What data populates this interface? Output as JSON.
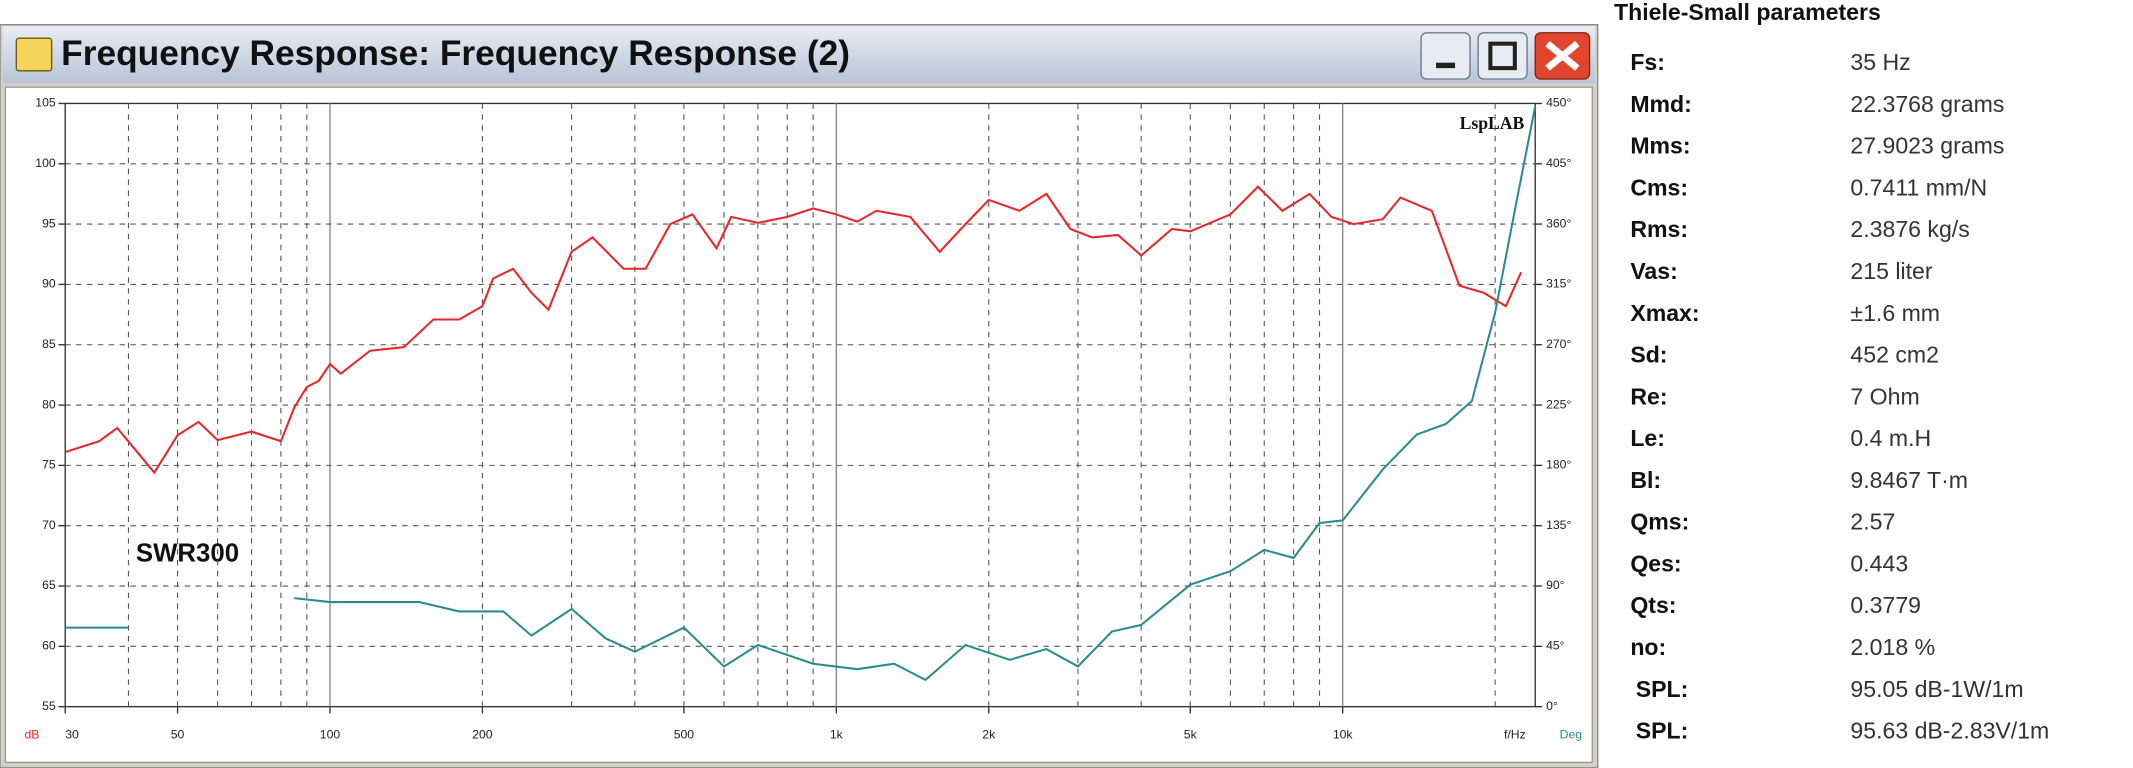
{
  "window": {
    "title": "Frequency Response: Frequency Response (2)"
  },
  "chart_data": {
    "type": "line",
    "annotations": [
      "LspLAB",
      "SWR300"
    ],
    "xlabel": "f/Hz",
    "ylabel": "dB",
    "y2label": "Deg",
    "xscale": "log",
    "grid": true,
    "xlim": [
      30,
      24000
    ],
    "xticks": [
      30,
      50,
      100,
      200,
      500,
      {
        "value": 1000,
        "label": "1k"
      },
      {
        "value": 2000,
        "label": "2k"
      },
      {
        "value": 5000,
        "label": "5k"
      },
      {
        "value": 10000,
        "label": "10k"
      }
    ],
    "xgrid": [
      40,
      50,
      60,
      70,
      80,
      90,
      100,
      200,
      300,
      400,
      500,
      600,
      700,
      800,
      900,
      1000,
      2000,
      3000,
      4000,
      5000,
      6000,
      7000,
      8000,
      9000,
      10000,
      20000
    ],
    "ylim": [
      55,
      105
    ],
    "yticks": [
      55,
      60,
      65,
      70,
      75,
      80,
      85,
      90,
      95,
      100,
      105
    ],
    "y2lim": [
      0,
      450
    ],
    "y2ticks": [
      {
        "value": 0,
        "label": "0°"
      },
      {
        "value": 45,
        "label": "45°"
      },
      {
        "value": 90,
        "label": "90°"
      },
      {
        "value": 135,
        "label": "135°"
      },
      {
        "value": 180,
        "label": "180°"
      },
      {
        "value": 225,
        "label": "225°"
      },
      {
        "value": 270,
        "label": "270°"
      },
      {
        "value": 315,
        "label": "315°"
      },
      {
        "value": 360,
        "label": "360°"
      },
      {
        "value": 405,
        "label": "405°"
      },
      {
        "value": 450,
        "label": "450°"
      }
    ],
    "series": [
      {
        "color": "#e8262a",
        "x": [
          30,
          35,
          38,
          45,
          50,
          55,
          60,
          70,
          80,
          85,
          90,
          95,
          100,
          105,
          120,
          140,
          160,
          180,
          200,
          210,
          230,
          250,
          270,
          300,
          330,
          380,
          420,
          470,
          520,
          580,
          620,
          700,
          800,
          900,
          1000,
          1100,
          1200,
          1400,
          1600,
          1800,
          2000,
          2300,
          2600,
          2900,
          3200,
          3600,
          4000,
          4600,
          5000,
          6000,
          6800,
          7600,
          8600,
          9500,
          10500,
          12000,
          13000,
          15000,
          17000,
          19000,
          21000,
          22500
        ],
        "values": [
          76.1,
          77,
          78.1,
          74.4,
          77.5,
          78.6,
          77.1,
          77.8,
          77,
          79.8,
          81.5,
          82,
          83.4,
          82.6,
          84.5,
          84.8,
          87.1,
          87.1,
          88.2,
          90.5,
          91.3,
          89.3,
          87.9,
          92.7,
          93.9,
          91.3,
          91.3,
          95,
          95.8,
          93,
          95.6,
          95.1,
          95.6,
          96.3,
          95.8,
          95.2,
          96.1,
          95.6,
          92.7,
          95,
          97,
          96.1,
          97.5,
          94.6,
          93.9,
          94.1,
          92.4,
          94.6,
          94.4,
          95.8,
          98.1,
          96.1,
          97.5,
          95.6,
          95,
          95.4,
          97.2,
          96.1,
          89.9,
          89.3,
          88.2,
          91
        ]
      },
      {
        "color": "#2a8c8c",
        "axis": "y2",
        "x": [
          30,
          40,
          60,
          85,
          100,
          150,
          180,
          220,
          250,
          300,
          350,
          400,
          500,
          600,
          700,
          900,
          1100,
          1300,
          1500,
          1800,
          2200,
          2600,
          3000,
          3500,
          4000,
          5000,
          6000,
          7000,
          8000,
          9000,
          10000,
          12000,
          14000,
          16000,
          18000,
          20000,
          22000,
          24000
        ],
        "values": [
          59,
          59,
          null,
          81,
          78,
          78,
          71,
          71,
          53,
          73,
          51,
          41,
          59,
          30,
          46,
          32,
          28,
          32,
          20,
          46,
          35,
          43,
          30,
          56,
          61,
          91,
          101,
          117,
          111,
          137,
          139,
          177,
          203,
          211,
          228,
          294,
          375,
          448
        ]
      }
    ]
  },
  "parameters": {
    "title": "Thiele-Small parameters",
    "rows": [
      [
        "Fs:",
        "35 Hz"
      ],
      [
        "Mmd:",
        "22.3768 grams"
      ],
      [
        "Mms:",
        "27.9023 grams"
      ],
      [
        "Cms:",
        "0.7411 mm/N"
      ],
      [
        "Rms:",
        "2.3876 kg/s"
      ],
      [
        "Vas:",
        "215 liter"
      ],
      [
        "Xmax:",
        "±1.6 mm"
      ],
      [
        "Sd:",
        "452 cm2"
      ],
      [
        "Re:",
        "7 Ohm"
      ],
      [
        "Le:",
        "0.4 m.H"
      ],
      [
        "Bl:",
        "9.8467 T·m"
      ],
      [
        "Qms:",
        "2.57"
      ],
      [
        "Qes:",
        "0.443"
      ],
      [
        "Qts:",
        "0.3779"
      ],
      [
        "no:",
        "2.018 %"
      ],
      [
        "SPL:",
        "95.05 dB-1W/1m"
      ],
      [
        "SPL:",
        "95.63 dB-2.83V/1m"
      ]
    ]
  }
}
